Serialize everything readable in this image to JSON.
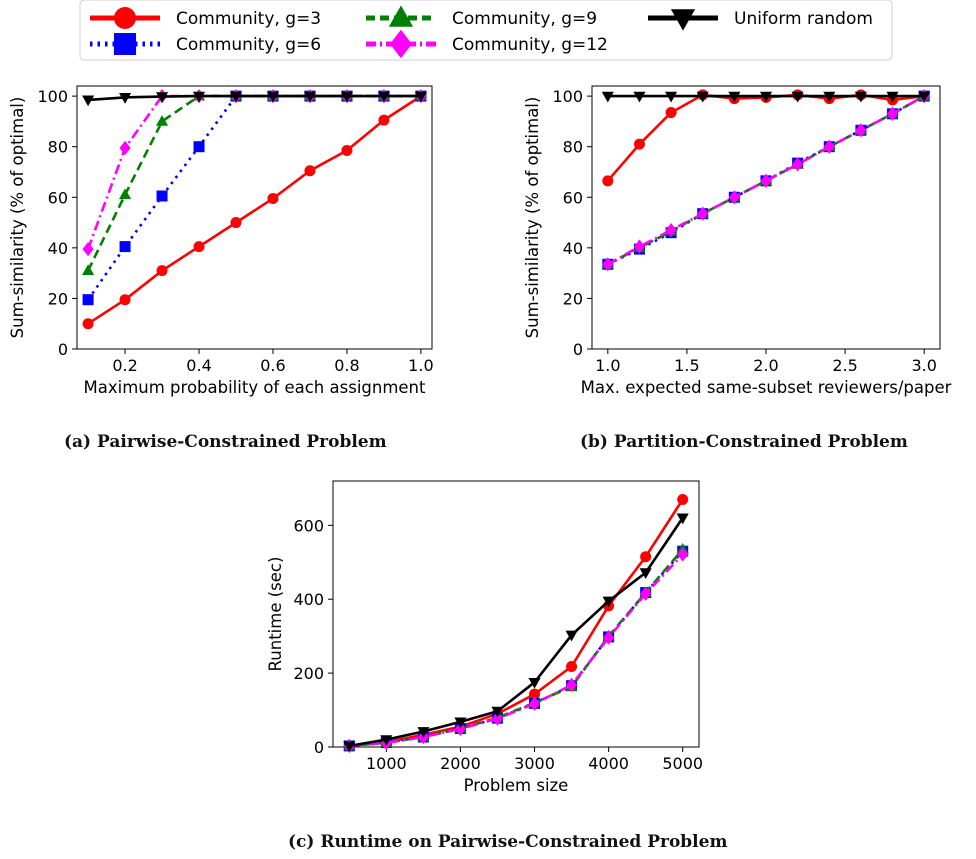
{
  "legend": {
    "entries": [
      {
        "label": "Community, g=3",
        "color": "#ff0000",
        "marker": "circle",
        "dash": "solid"
      },
      {
        "label": "Community, g=6",
        "color": "#0000ff",
        "marker": "square",
        "dash": "dotted"
      },
      {
        "label": "Community, g=9",
        "color": "#008000",
        "marker": "triangle-up",
        "dash": "dashed"
      },
      {
        "label": "Community, g=12",
        "color": "#ff00ff",
        "marker": "diamond",
        "dash": "dashdot"
      },
      {
        "label": "Uniform random",
        "color": "#000000",
        "marker": "triangle-down",
        "dash": "solid"
      }
    ]
  },
  "captions": {
    "a": "(a) Pairwise-Constrained Problem",
    "b": "(b) Partition-Constrained Problem",
    "c": "(c) Runtime on Pairwise-Constrained Problem"
  },
  "chart_data": [
    {
      "type": "line",
      "xlabel": "Maximum probability of each assignment",
      "ylabel": "Sum-similarity (% of optimal)",
      "xlim": [
        0.07,
        1.03
      ],
      "ylim": [
        0,
        104
      ],
      "xticks": [
        "0.2",
        "0.4",
        "0.6",
        "0.8",
        "1.0"
      ],
      "yticks": [
        "0",
        "20",
        "40",
        "60",
        "80",
        "100"
      ],
      "grid": false,
      "series": [
        {
          "name": "Community, g=3",
          "x": [
            0.1,
            0.2,
            0.3,
            0.4,
            0.5,
            0.6,
            0.7,
            0.8,
            0.9,
            1.0
          ],
          "y": [
            10,
            19.5,
            31,
            40.5,
            50,
            59.5,
            70.5,
            78.5,
            90.5,
            100
          ]
        },
        {
          "name": "Community, g=6",
          "x": [
            0.1,
            0.2,
            0.3,
            0.4,
            0.5,
            0.6,
            0.7,
            0.8,
            0.9,
            1.0
          ],
          "y": [
            19.5,
            40.5,
            60.5,
            80,
            100,
            100,
            100,
            100,
            100,
            100
          ]
        },
        {
          "name": "Community, g=9",
          "x": [
            0.1,
            0.2,
            0.3,
            0.4,
            0.5,
            0.6,
            0.7,
            0.8,
            0.9,
            1.0
          ],
          "y": [
            31,
            61,
            90,
            100,
            100,
            100,
            100,
            100,
            100,
            100
          ]
        },
        {
          "name": "Community, g=12",
          "x": [
            0.1,
            0.2,
            0.3,
            0.4,
            0.5,
            0.6,
            0.7,
            0.8,
            0.9,
            1.0
          ],
          "y": [
            39.5,
            79.5,
            100,
            100,
            100,
            100,
            100,
            100,
            100,
            100
          ]
        },
        {
          "name": "Uniform random",
          "x": [
            0.1,
            0.2,
            0.3,
            0.4,
            0.5,
            0.6,
            0.7,
            0.8,
            0.9,
            1.0
          ],
          "y": [
            98.5,
            99.5,
            99.8,
            100,
            100,
            100,
            100,
            100,
            100,
            100
          ]
        }
      ]
    },
    {
      "type": "line",
      "xlabel": "Max. expected same-subset reviewers/paper",
      "ylabel": "Sum-similarity (% of optimal)",
      "xlim": [
        0.9,
        3.1
      ],
      "ylim": [
        0,
        104
      ],
      "xticks": [
        "1.0",
        "1.5",
        "2.0",
        "2.5",
        "3.0"
      ],
      "yticks": [
        "0",
        "20",
        "40",
        "60",
        "80",
        "100"
      ],
      "grid": false,
      "series": [
        {
          "name": "Community, g=3",
          "x": [
            1.0,
            1.2,
            1.4,
            1.6,
            1.8,
            2.0,
            2.2,
            2.4,
            2.6,
            2.8,
            3.0
          ],
          "y": [
            66.5,
            81,
            93.5,
            100.5,
            99,
            99.5,
            100.5,
            99,
            100.5,
            98.5,
            100
          ]
        },
        {
          "name": "Community, g=6",
          "x": [
            1.0,
            1.2,
            1.4,
            1.6,
            1.8,
            2.0,
            2.2,
            2.4,
            2.6,
            2.8,
            3.0
          ],
          "y": [
            33.5,
            39.5,
            46,
            53.5,
            60,
            66.5,
            73.5,
            80,
            86.5,
            93,
            100
          ]
        },
        {
          "name": "Community, g=9",
          "x": [
            1.0,
            1.2,
            1.4,
            1.6,
            1.8,
            2.0,
            2.2,
            2.4,
            2.6,
            2.8,
            3.0
          ],
          "y": [
            33.5,
            40,
            46.5,
            53.5,
            60,
            66.5,
            73,
            80,
            86.5,
            93,
            100
          ]
        },
        {
          "name": "Community, g=12",
          "x": [
            1.0,
            1.2,
            1.4,
            1.6,
            1.8,
            2.0,
            2.2,
            2.4,
            2.6,
            2.8,
            3.0
          ],
          "y": [
            33.5,
            40.5,
            47,
            53.5,
            60,
            66.5,
            73,
            80,
            86.5,
            93,
            100
          ]
        },
        {
          "name": "Uniform random",
          "x": [
            1.0,
            1.2,
            1.4,
            1.6,
            1.8,
            2.0,
            2.2,
            2.4,
            2.6,
            2.8,
            3.0
          ],
          "y": [
            100,
            100,
            100,
            100,
            100,
            100,
            100,
            100,
            100,
            100,
            100
          ]
        }
      ]
    },
    {
      "type": "line",
      "xlabel": "Problem size",
      "ylabel": "Runtime (sec)",
      "xlim": [
        280,
        5220
      ],
      "ylim": [
        0,
        720
      ],
      "xticks": [
        "1000",
        "2000",
        "3000",
        "4000",
        "5000"
      ],
      "yticks": [
        "0",
        "200",
        "400",
        "600"
      ],
      "grid": false,
      "series": [
        {
          "name": "Community, g=3",
          "x": [
            500,
            1000,
            1500,
            2000,
            2500,
            3000,
            3500,
            4000,
            4500,
            5000
          ],
          "y": [
            3,
            13,
            33,
            55,
            90,
            143,
            218,
            382,
            515,
            670
          ]
        },
        {
          "name": "Community, g=6",
          "x": [
            500,
            1000,
            1500,
            2000,
            2500,
            3000,
            3500,
            4000,
            4500,
            5000
          ],
          "y": [
            3,
            12,
            27,
            50,
            78,
            118,
            166,
            298,
            418,
            530
          ]
        },
        {
          "name": "Community, g=9",
          "x": [
            500,
            1000,
            1500,
            2000,
            2500,
            3000,
            3500,
            4000,
            4500,
            5000
          ],
          "y": [
            3,
            12,
            27,
            50,
            79,
            120,
            163,
            300,
            418,
            535
          ]
        },
        {
          "name": "Community, g=12",
          "x": [
            500,
            1000,
            1500,
            2000,
            2500,
            3000,
            3500,
            4000,
            4500,
            5000
          ],
          "y": [
            3,
            11,
            27,
            49,
            77,
            117,
            168,
            296,
            415,
            521
          ]
        },
        {
          "name": "Uniform random",
          "x": [
            500,
            1000,
            1500,
            2000,
            2500,
            3000,
            3500,
            4000,
            4500,
            5000
          ],
          "y": [
            3,
            20,
            42,
            68,
            97,
            175,
            303,
            395,
            472,
            620
          ]
        }
      ]
    }
  ]
}
